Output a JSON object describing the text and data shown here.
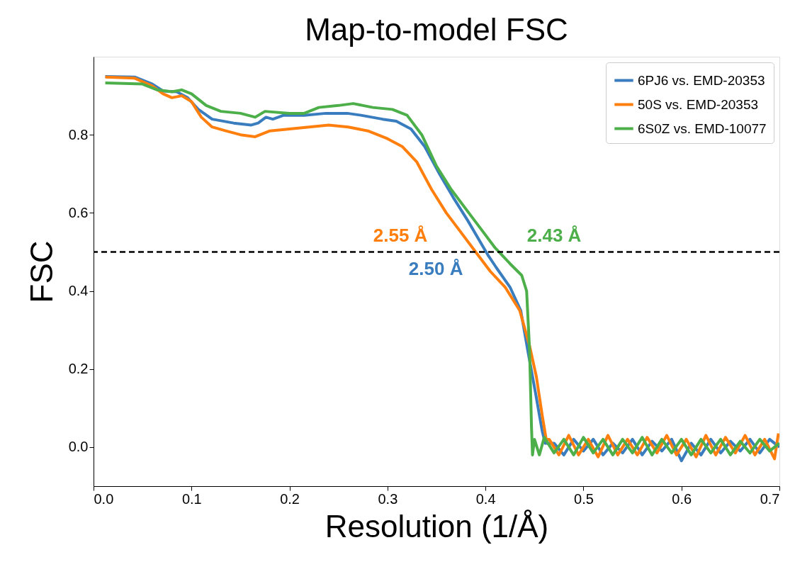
{
  "chart_data": {
    "type": "line",
    "title": "Map-to-model FSC",
    "xlabel": "Resolution (1/Å)",
    "ylabel": "FSC",
    "xlim": [
      0,
      0.7
    ],
    "xticks": [
      {
        "value": 0,
        "label": "0.0"
      },
      0.1,
      0.2,
      0.3,
      0.4,
      0.5,
      0.6,
      0.7
    ],
    "ylim": [
      -0.1,
      1.0
    ],
    "yticks": [
      {
        "value": 0,
        "label": "0.0"
      },
      0.2,
      0.4,
      0.6,
      0.8
    ],
    "grid": false,
    "legend": "top right",
    "marker": "none",
    "line_style": "solid",
    "ref_lines": [
      {
        "axis": "y",
        "value": 0.5,
        "color": "#000000",
        "line_style": "dashed"
      }
    ],
    "annotations": [
      {
        "text": "2.55 Å",
        "x": 0.392,
        "y": 0.5
      },
      {
        "text": "2.50 Å",
        "x": 0.4,
        "y": 0.5
      },
      {
        "text": "2.43 Å",
        "x": 0.4115,
        "y": 0.5
      }
    ],
    "series": [
      {
        "name": "6PJ6 vs. EMD-20353",
        "color": "#3a7dbf",
        "x": [
          0.012,
          0.042,
          0.06,
          0.071,
          0.085,
          0.096,
          0.107,
          0.121,
          0.143,
          0.161,
          0.168,
          0.176,
          0.183,
          0.194,
          0.215,
          0.237,
          0.259,
          0.273,
          0.295,
          0.309,
          0.324,
          0.338,
          0.353,
          0.367,
          0.382,
          0.396,
          0.403,
          0.411,
          0.425,
          0.436,
          0.443,
          0.451,
          0.458,
          0.461,
          0.47,
          0.48,
          0.49,
          0.5,
          0.51,
          0.52,
          0.53,
          0.54,
          0.55,
          0.56,
          0.57,
          0.58,
          0.59,
          0.6,
          0.61,
          0.62,
          0.63,
          0.64,
          0.65,
          0.66,
          0.67,
          0.68,
          0.69,
          0.7
        ],
        "values": [
          0.949,
          0.948,
          0.93,
          0.912,
          0.91,
          0.895,
          0.865,
          0.84,
          0.83,
          0.825,
          0.83,
          0.845,
          0.84,
          0.85,
          0.85,
          0.855,
          0.855,
          0.85,
          0.84,
          0.835,
          0.815,
          0.77,
          0.7,
          0.64,
          0.58,
          0.52,
          0.49,
          0.46,
          0.41,
          0.35,
          0.25,
          0.14,
          0.04,
          0.01,
          0.01,
          -0.02,
          0.02,
          -0.01,
          0.02,
          -0.02,
          0.01,
          -0.015,
          0.02,
          -0.02,
          0.015,
          -0.01,
          0.02,
          -0.035,
          0.01,
          -0.02,
          0.02,
          -0.015,
          0.015,
          -0.01,
          0.02,
          -0.015,
          0.02,
          0.0
        ]
      },
      {
        "name": "50S vs. EMD-20353",
        "color": "#ff7f0e",
        "x": [
          0.012,
          0.042,
          0.06,
          0.071,
          0.08,
          0.09,
          0.1,
          0.11,
          0.121,
          0.135,
          0.15,
          0.165,
          0.18,
          0.2,
          0.22,
          0.24,
          0.26,
          0.28,
          0.3,
          0.315,
          0.33,
          0.345,
          0.36,
          0.375,
          0.39,
          0.405,
          0.42,
          0.435,
          0.445,
          0.452,
          0.458,
          0.462,
          0.465,
          0.475,
          0.485,
          0.495,
          0.505,
          0.515,
          0.525,
          0.535,
          0.545,
          0.555,
          0.565,
          0.575,
          0.585,
          0.595,
          0.605,
          0.615,
          0.625,
          0.635,
          0.645,
          0.655,
          0.665,
          0.675,
          0.685,
          0.695,
          0.699
        ],
        "values": [
          0.948,
          0.945,
          0.925,
          0.905,
          0.895,
          0.9,
          0.885,
          0.845,
          0.82,
          0.81,
          0.8,
          0.795,
          0.81,
          0.815,
          0.82,
          0.825,
          0.82,
          0.81,
          0.79,
          0.77,
          0.73,
          0.66,
          0.6,
          0.55,
          0.5,
          0.45,
          0.41,
          0.35,
          0.26,
          0.18,
          0.08,
          0.02,
          0.02,
          -0.02,
          0.03,
          -0.02,
          0.02,
          -0.025,
          0.03,
          -0.02,
          0.02,
          -0.02,
          0.025,
          -0.015,
          0.03,
          -0.02,
          0.02,
          -0.025,
          0.03,
          -0.02,
          0.025,
          -0.015,
          0.03,
          -0.02,
          0.02,
          -0.03,
          0.035
        ]
      },
      {
        "name": "6S0Z vs. EMD-10077",
        "color": "#4daf4a",
        "x": [
          0.012,
          0.05,
          0.065,
          0.08,
          0.09,
          0.1,
          0.115,
          0.13,
          0.15,
          0.165,
          0.175,
          0.2,
          0.215,
          0.23,
          0.25,
          0.265,
          0.285,
          0.305,
          0.32,
          0.335,
          0.35,
          0.365,
          0.38,
          0.395,
          0.41,
          0.425,
          0.437,
          0.442,
          0.445,
          0.447,
          0.448,
          0.45,
          0.455,
          0.46,
          0.47,
          0.48,
          0.49,
          0.5,
          0.51,
          0.52,
          0.53,
          0.54,
          0.55,
          0.56,
          0.57,
          0.58,
          0.59,
          0.6,
          0.61,
          0.62,
          0.63,
          0.64,
          0.65,
          0.66,
          0.67,
          0.68,
          0.69,
          0.7
        ],
        "values": [
          0.933,
          0.93,
          0.915,
          0.91,
          0.915,
          0.905,
          0.875,
          0.86,
          0.855,
          0.845,
          0.86,
          0.855,
          0.855,
          0.87,
          0.875,
          0.88,
          0.87,
          0.865,
          0.85,
          0.8,
          0.72,
          0.66,
          0.61,
          0.56,
          0.51,
          0.47,
          0.44,
          0.4,
          0.25,
          0.05,
          -0.02,
          0.02,
          -0.02,
          0.025,
          -0.015,
          0.02,
          -0.02,
          0.025,
          -0.015,
          0.02,
          -0.02,
          0.02,
          -0.015,
          0.025,
          -0.02,
          0.02,
          -0.015,
          0.02,
          -0.02,
          0.02,
          -0.015,
          0.02,
          -0.02,
          0.015,
          -0.015,
          0.02,
          -0.01,
          0.01
        ]
      }
    ]
  }
}
